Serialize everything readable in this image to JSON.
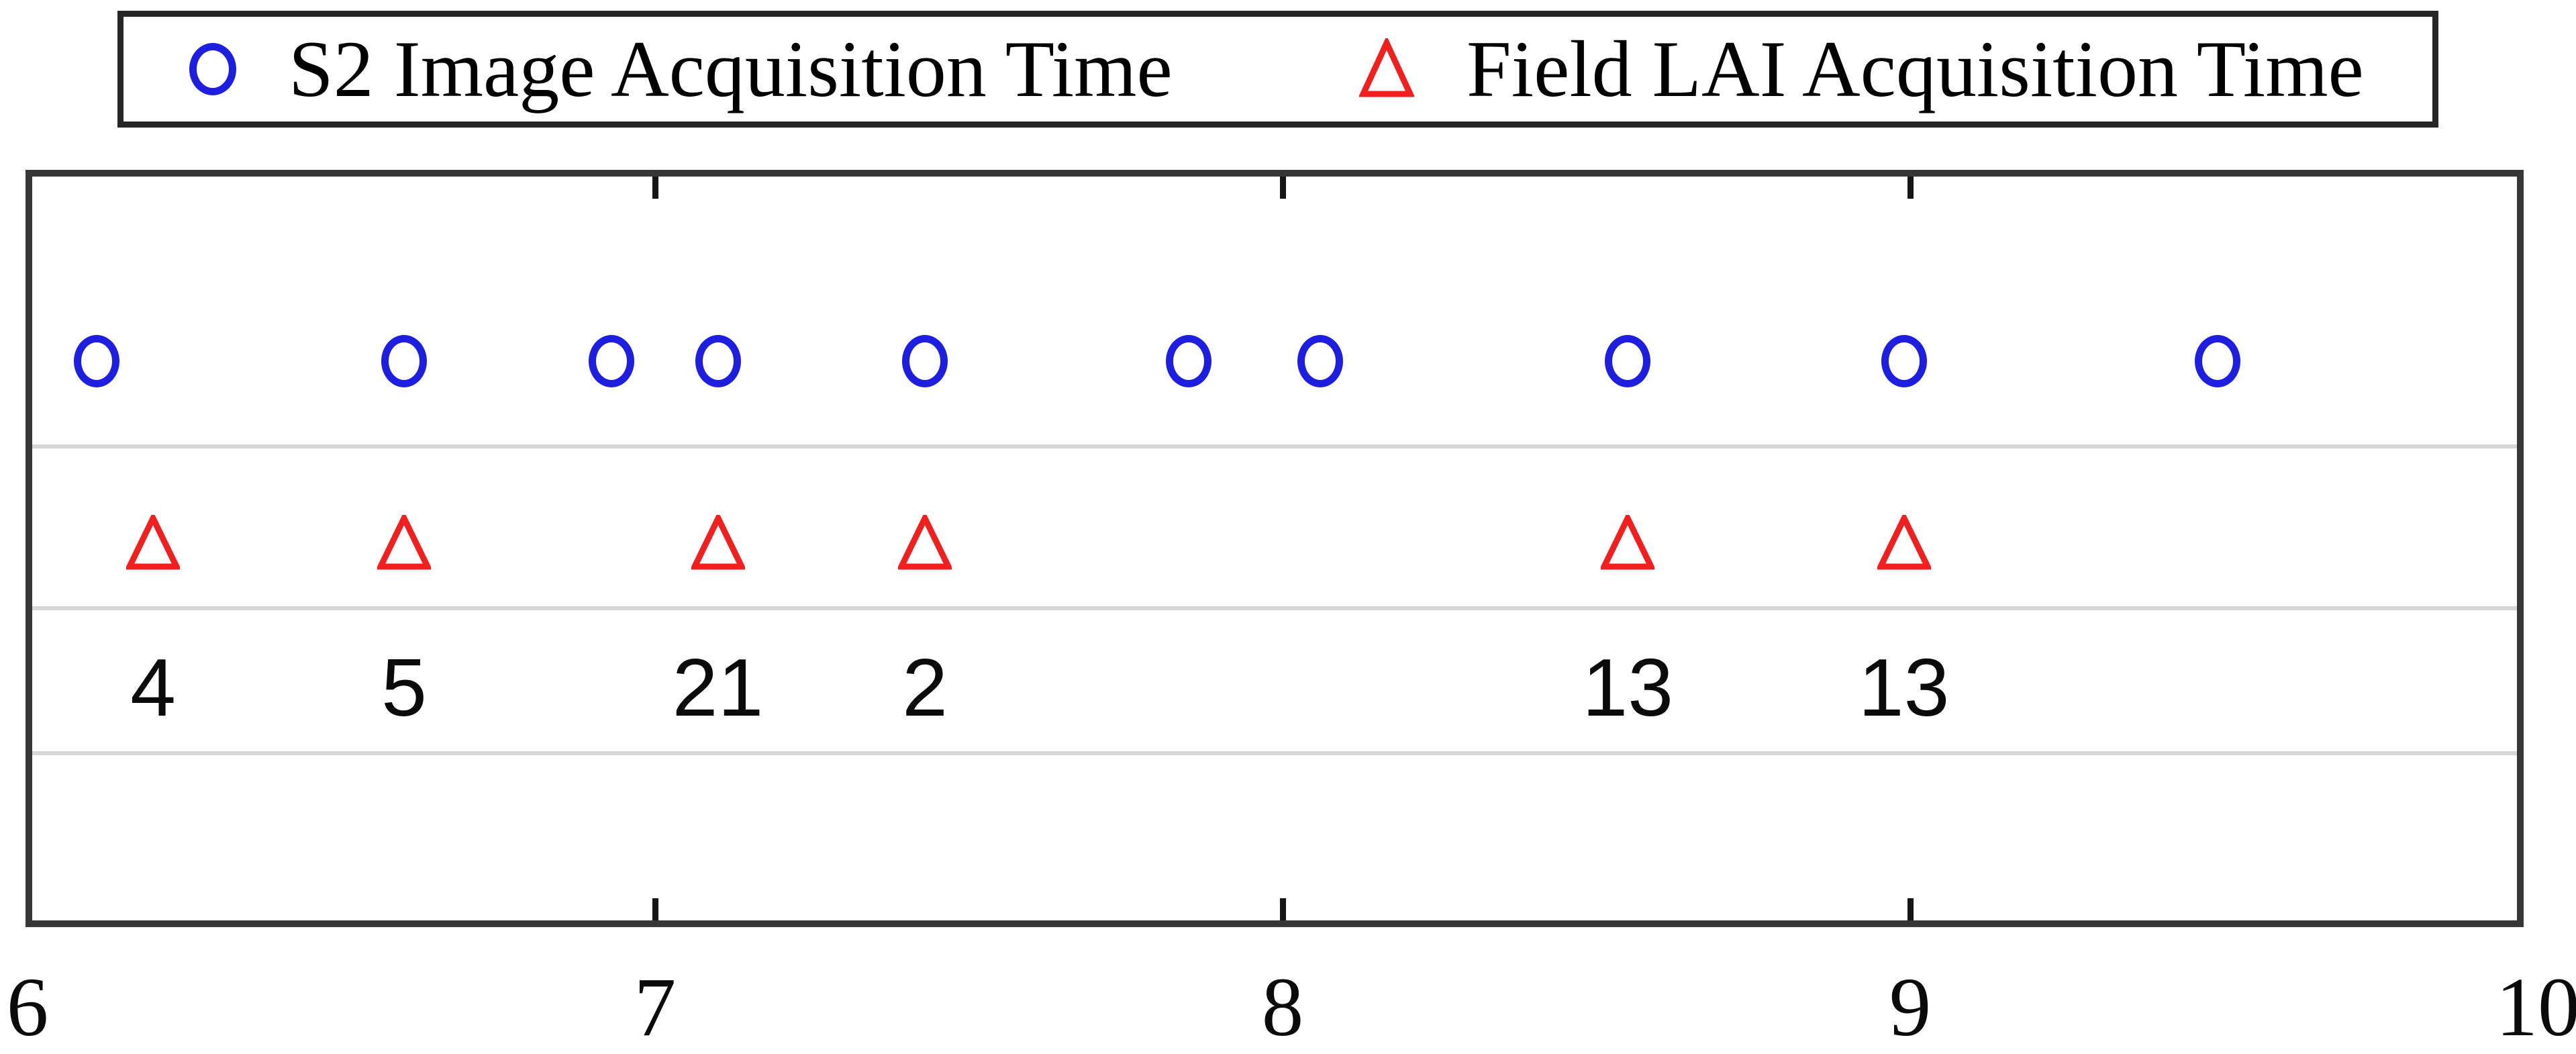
{
  "legend": {
    "items": [
      {
        "label": "S2 Image Acquisition Time",
        "marker": "circle-icon",
        "color": "#1e1ee0"
      },
      {
        "label": "Field LAI Acquisition Time",
        "marker": "triangle-icon",
        "color": "#f21f1f"
      }
    ]
  },
  "chart_data": {
    "type": "scatter",
    "title": "",
    "xlabel": "",
    "ylabel": "",
    "xlim": [
      6,
      10
    ],
    "x_tick_labels": [
      "6",
      "7",
      "8",
      "9",
      "10"
    ],
    "x_tick_values": [
      6,
      7,
      8,
      9,
      10
    ],
    "inner_tick_values": [
      7,
      8,
      9
    ],
    "grid": "horizontal-row-separators",
    "legend_position": "top-outside",
    "series": [
      {
        "name": "S2 Image Acquisition Time",
        "marker": "circle",
        "color": "#1e1ee0",
        "x": [
          6.11,
          6.6,
          6.93,
          7.1,
          7.43,
          7.85,
          8.06,
          8.55,
          8.99,
          9.49
        ]
      },
      {
        "name": "Field LAI Acquisition Time",
        "marker": "triangle",
        "color": "#f21f1f",
        "x": [
          6.2,
          6.6,
          7.1,
          7.43,
          8.55,
          8.99
        ]
      }
    ],
    "annotations": [
      {
        "x": 6.2,
        "text": "4"
      },
      {
        "x": 6.6,
        "text": "5"
      },
      {
        "x": 7.1,
        "text": "21"
      },
      {
        "x": 7.43,
        "text": "2"
      },
      {
        "x": 8.55,
        "text": "13"
      },
      {
        "x": 8.99,
        "text": "13"
      }
    ]
  }
}
